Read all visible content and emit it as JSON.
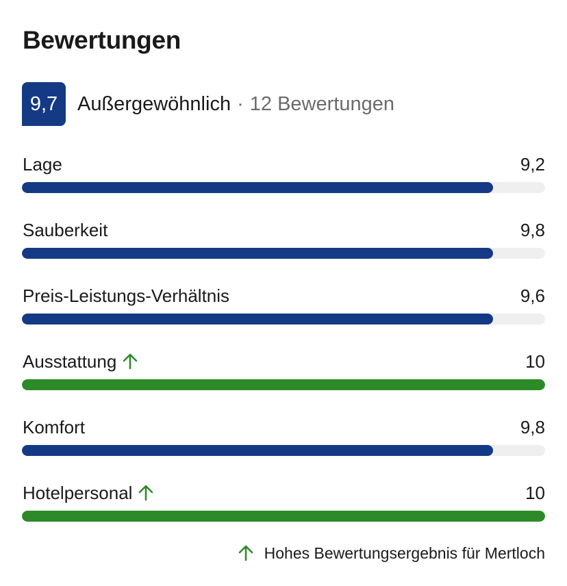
{
  "title": "Bewertungen",
  "colors": {
    "brand_blue": "#143a85",
    "green": "#2d8a28",
    "track": "#efefef"
  },
  "summary": {
    "score": "9,7",
    "rating_word": "Außergewöhnlich",
    "separator": "·",
    "count_text": "12 Bewertungen"
  },
  "categories": [
    {
      "label": "Lage",
      "value": "9,2",
      "fill_fraction": 0.9,
      "highlight": false
    },
    {
      "label": "Sauberkeit",
      "value": "9,8",
      "fill_fraction": 0.9,
      "highlight": false
    },
    {
      "label": "Preis-Leistungs-Verhältnis",
      "value": "9,6",
      "fill_fraction": 0.9,
      "highlight": false
    },
    {
      "label": "Ausstattung",
      "value": "10",
      "fill_fraction": 1.0,
      "highlight": true,
      "icon": "arrow-up-icon"
    },
    {
      "label": "Komfort",
      "value": "9,8",
      "fill_fraction": 0.9,
      "highlight": false
    },
    {
      "label": "Hotelpersonal",
      "value": "10",
      "fill_fraction": 1.0,
      "highlight": true,
      "icon": "arrow-up-icon"
    }
  ],
  "footnote": {
    "icon": "arrow-up-icon",
    "text": "Hohes Bewertungsergebnis für Mertloch"
  }
}
